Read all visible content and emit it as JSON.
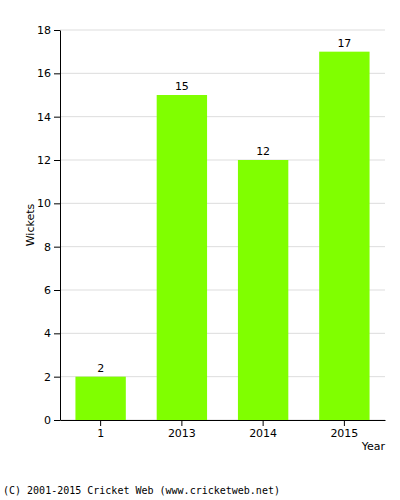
{
  "chart_data": {
    "type": "bar",
    "categories": [
      "1",
      "2013",
      "2014",
      "2015"
    ],
    "values": [
      2,
      15,
      12,
      17
    ],
    "color": "#80ff00",
    "x_label": "Year",
    "y_label": "Wickets",
    "ylim": [
      0,
      18
    ],
    "yticks": [
      0,
      2,
      4,
      6,
      8,
      10,
      12,
      14,
      16,
      18
    ],
    "grid": true,
    "data_labels": true,
    "annotations": [
      "(C) 2001-2015 Cricket Web (www.cricketweb.net)"
    ]
  }
}
